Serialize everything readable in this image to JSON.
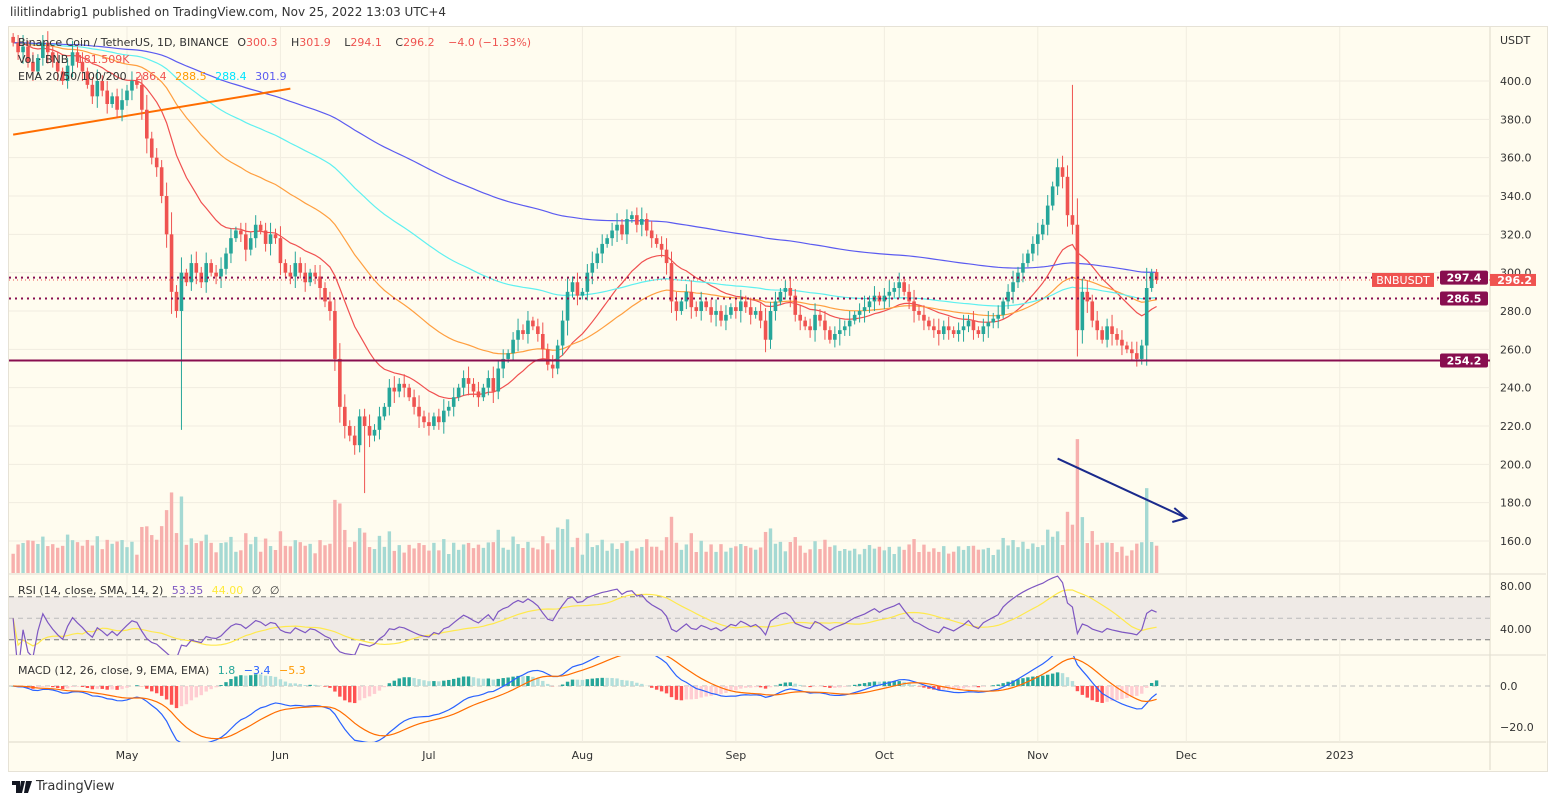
{
  "header": {
    "published": "lilitlindabrig1 published on TradingView.com, Nov 25, 2022 13:03 UTC+4"
  },
  "legend": {
    "symbol": "Binance Coin / TetherUS, 1D, BINANCE",
    "o_label": "O",
    "o": "300.3",
    "h_label": "H",
    "h": "301.9",
    "l_label": "L",
    "l": "294.1",
    "c_label": "C",
    "c": "296.2",
    "change": "−4.0 (−1.33%)",
    "vol_label": "Vol · BNB",
    "vol": "181.509K",
    "ema_label": "EMA 20/50/100/200",
    "ema20": "286.4",
    "ema50": "288.5",
    "ema100": "288.4",
    "ema200": "301.9",
    "rsi_label": "RSI (14, close, SMA, 14, 2)",
    "rsi": "53.35",
    "rsi_sma": "44.00",
    "rsi_n1": "∅",
    "rsi_n2": "∅",
    "macd_label": "MACD (12, 26, close, 9, EMA, EMA)",
    "macd_hist": "1.8",
    "macd": "−3.4",
    "macd_signal": "−5.3"
  },
  "footer": {
    "brand": "TradingView",
    "logo_icon": "tradingview-logo-icon"
  },
  "colors": {
    "up": "#26a69a",
    "down": "#ef5350",
    "ema20": "#f05050",
    "ema50": "#ff9f40",
    "ema100": "#5ff0f0",
    "ema200": "#5b5bf0",
    "level": "#880e4f",
    "background": "#fffcef",
    "rsi": "#7e57c2",
    "rsi_sma": "#ffe94d",
    "macd": "#2962ff",
    "signal": "#ff6d00"
  },
  "chart_data": {
    "type": "candlestick",
    "symbol": "BNBUSDT",
    "currency": "USDT",
    "first_date": "2022-04-08",
    "last_date": "2022-11-25",
    "closes": [
      420,
      415,
      418,
      410,
      405,
      412,
      420,
      415,
      410,
      405,
      400,
      408,
      415,
      410,
      405,
      398,
      392,
      400,
      395,
      388,
      392,
      385,
      390,
      395,
      400,
      398,
      385,
      370,
      360,
      355,
      340,
      320,
      290,
      280,
      300,
      295,
      305,
      300,
      295,
      305,
      300,
      298,
      302,
      310,
      318,
      322,
      320,
      312,
      318,
      325,
      322,
      315,
      320,
      318,
      305,
      300,
      298,
      305,
      300,
      295,
      300,
      298,
      292,
      285,
      280,
      255,
      230,
      220,
      215,
      210,
      225,
      220,
      215,
      218,
      225,
      230,
      240,
      238,
      242,
      240,
      235,
      230,
      225,
      222,
      220,
      225,
      222,
      228,
      230,
      235,
      240,
      245,
      242,
      238,
      235,
      240,
      245,
      238,
      250,
      255,
      258,
      265,
      270,
      268,
      275,
      272,
      268,
      260,
      252,
      250,
      262,
      275,
      290,
      295,
      288,
      290,
      300,
      305,
      310,
      315,
      318,
      322,
      325,
      320,
      328,
      330,
      325,
      328,
      322,
      318,
      315,
      312,
      305,
      285,
      280,
      285,
      290,
      282,
      280,
      285,
      282,
      278,
      280,
      275,
      278,
      282,
      280,
      285,
      282,
      278,
      280,
      275,
      265,
      280,
      285,
      290,
      292,
      288,
      278,
      275,
      272,
      270,
      278,
      275,
      270,
      265,
      268,
      270,
      272,
      275,
      278,
      280,
      282,
      285,
      288,
      285,
      288,
      290,
      292,
      295,
      290,
      285,
      280,
      278,
      275,
      272,
      270,
      268,
      272,
      270,
      268,
      270,
      272,
      275,
      270,
      268,
      272,
      274,
      276,
      278,
      285,
      290,
      295,
      300,
      305,
      310,
      315,
      320,
      325,
      335,
      345,
      355,
      350,
      330,
      325,
      270,
      290,
      285,
      275,
      270,
      265,
      272,
      268,
      265,
      262,
      260,
      258,
      255,
      262,
      292,
      300,
      296
    ],
    "extremes": [
      {
        "date": "2022-05-12",
        "low": 218
      },
      {
        "date": "2022-06-18",
        "low": 185
      },
      {
        "date": "2022-11-08",
        "high": 398
      },
      {
        "date": "2022-11-21",
        "low": 251
      }
    ],
    "last_ohlc": {
      "open": 300.3,
      "high": 301.9,
      "low": 294.1,
      "close": 296.2
    },
    "price_axis": {
      "ticks": [
        "400.0",
        "380.0",
        "360.0",
        "340.0",
        "320.0",
        "300.0",
        "280.0",
        "260.0",
        "240.0",
        "220.0",
        "200.0",
        "180.0",
        "160.0"
      ],
      "range": [
        133,
        427
      ]
    },
    "time_axis": {
      "ticks": [
        {
          "label": "May",
          "date": "2022-05-01"
        },
        {
          "label": "Jun",
          "date": "2022-06-01"
        },
        {
          "label": "Jul",
          "date": "2022-07-01"
        },
        {
          "label": "Aug",
          "date": "2022-08-01"
        },
        {
          "label": "Sep",
          "date": "2022-09-01"
        },
        {
          "label": "Oct",
          "date": "2022-10-01"
        },
        {
          "label": "Nov",
          "date": "2022-11-01"
        },
        {
          "label": "Dec",
          "date": "2022-12-01"
        },
        {
          "label": "2023",
          "date": "2023-01-01"
        }
      ]
    },
    "indicators": {
      "ema_periods": [
        20,
        50,
        100,
        200
      ],
      "rsi_period": 14,
      "rsi_sma": 14,
      "macd": [
        12,
        26,
        9
      ]
    },
    "levels": [
      {
        "price": 297.4,
        "label": "297.4",
        "style": "dotted"
      },
      {
        "price": 286.5,
        "label": "286.5",
        "style": "dotted"
      },
      {
        "price": 254.2,
        "label": "254.2",
        "style": "solid"
      }
    ],
    "last_price": {
      "symbol": "BNBUSDT",
      "price": 296.2,
      "label": "296.2"
    },
    "trendline": {
      "from": {
        "date": "2022-04-08",
        "price": 372
      },
      "to": {
        "date": "2022-06-03",
        "price": 396
      }
    },
    "arrow": {
      "from": {
        "date": "2022-11-05",
        "price": 203
      },
      "to": {
        "date": "2022-12-01",
        "price": 172
      }
    },
    "rsi_axis": {
      "ticks": [
        "80.00",
        "40.00"
      ],
      "bands": [
        70,
        50,
        30
      ]
    },
    "macd_axis": {
      "ticks": [
        "0.0",
        "−20.0"
      ]
    },
    "grid": true
  }
}
